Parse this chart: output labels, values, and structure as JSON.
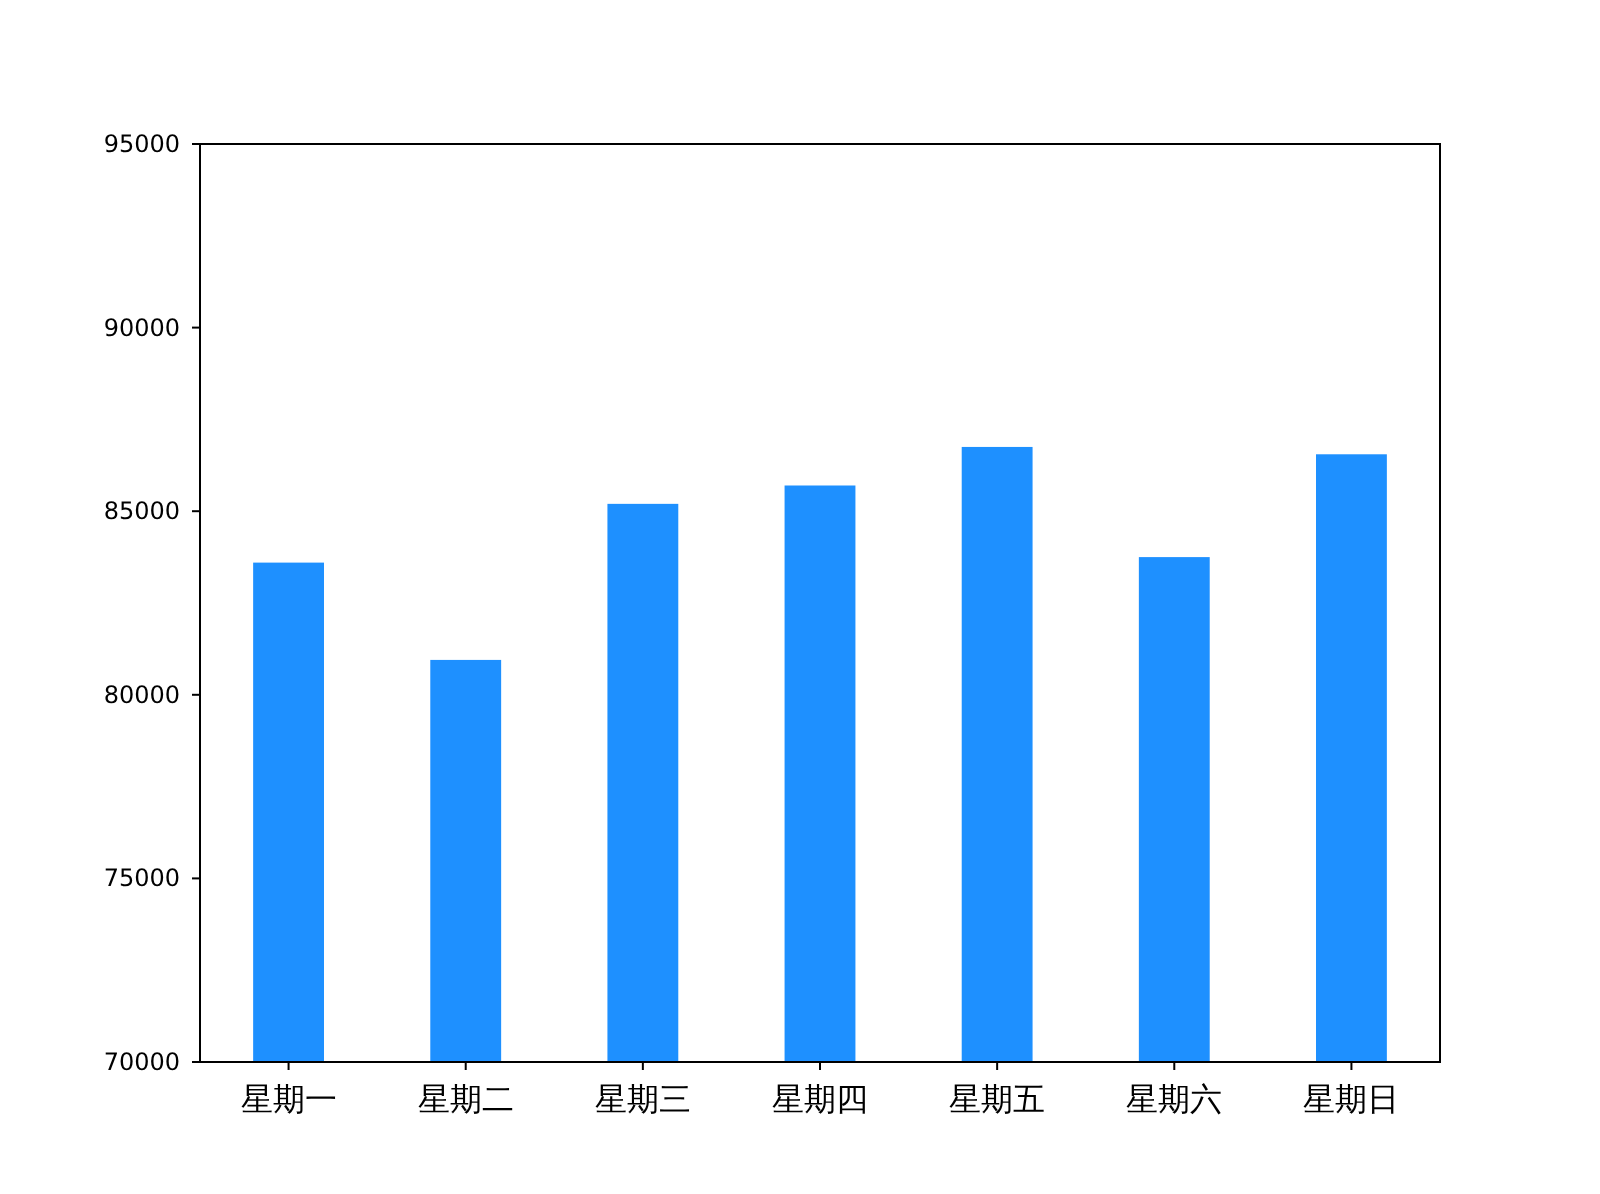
{
  "chart_data": {
    "type": "bar",
    "categories": [
      "星期一",
      "星期二",
      "星期三",
      "星期四",
      "星期五",
      "星期六",
      "星期日"
    ],
    "values": [
      83600,
      80950,
      85200,
      85700,
      86750,
      83750,
      86550
    ],
    "color": "#1e90ff",
    "ylim": [
      70000,
      95000
    ],
    "yticks": [
      70000,
      75000,
      80000,
      85000,
      90000,
      95000
    ],
    "grid": false
  }
}
